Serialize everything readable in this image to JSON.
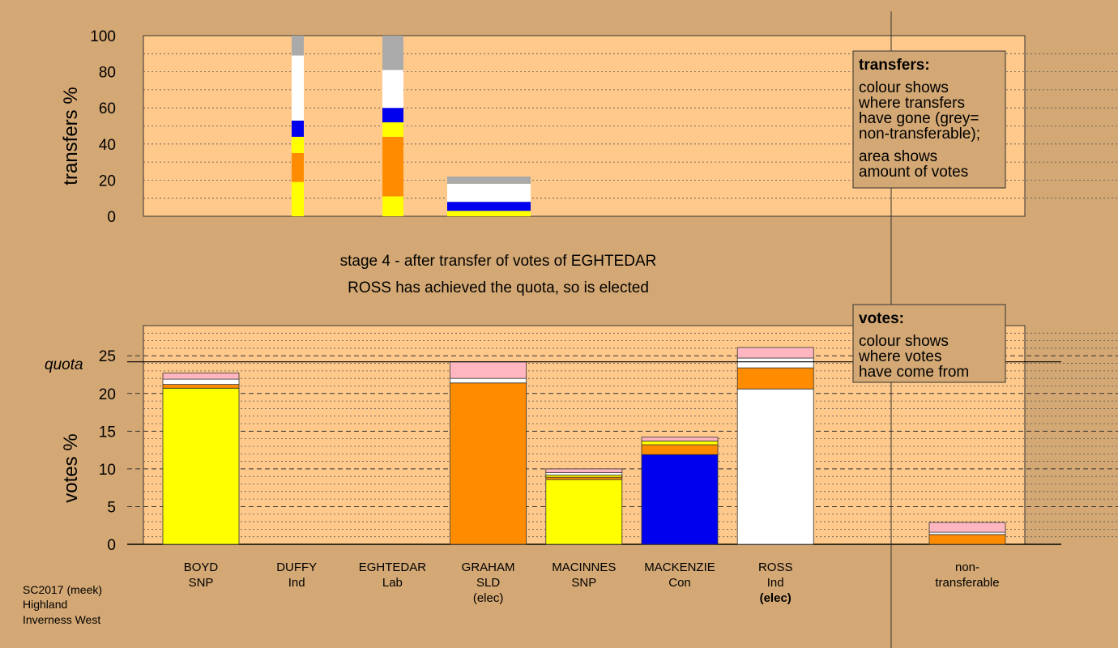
{
  "colors": {
    "background": "#d4a874",
    "plot": "#fec98a",
    "snp": "#ffff00",
    "sld": "#ff8c00",
    "lab": "#ff8c00",
    "con": "#0000ee",
    "ind": "#ffffff",
    "other": "#ffb6c1",
    "nontransferable": "#aaaaaa"
  },
  "header": {
    "stage_line": "stage 4 - after transfer of votes of EGHTEDAR",
    "elected_line": "ROSS has achieved the quota, so is elected"
  },
  "footer": {
    "line1": "SC2017 (meek)",
    "line2": "Highland",
    "line3": "Inverness West"
  },
  "transfers_legend": {
    "title": "transfers:",
    "line1": "colour shows",
    "line2": "where transfers",
    "line3": "have gone (grey=",
    "line4": "non-transferable);",
    "line5": "area shows",
    "line6": "amount of votes"
  },
  "votes_legend": {
    "title": "votes:",
    "line1": "colour shows",
    "line2": "where votes",
    "line3": "have come from"
  },
  "chart_data": [
    {
      "type": "bar",
      "name": "transfers",
      "ylabel": "transfers %",
      "ylim": [
        0,
        100
      ],
      "yticks": [
        0,
        20,
        40,
        60,
        80,
        100
      ],
      "note": "stacked segments: [bottom %, top %, colour key]",
      "bars": [
        {
          "slot": 1,
          "width": "narrow",
          "segments": [
            [
              0,
              19,
              "snp"
            ],
            [
              19,
              35,
              "sld"
            ],
            [
              35,
              44,
              "snp"
            ],
            [
              44,
              53,
              "con"
            ],
            [
              53,
              89,
              "ind"
            ],
            [
              89,
              100,
              "nontransferable"
            ]
          ]
        },
        {
          "slot": 2,
          "width": "narrow",
          "segments": [
            [
              0,
              11,
              "snp"
            ],
            [
              11,
              44,
              "sld"
            ],
            [
              44,
              52,
              "snp"
            ],
            [
              52,
              60,
              "con"
            ],
            [
              60,
              81,
              "ind"
            ],
            [
              81,
              100,
              "nontransferable"
            ]
          ]
        },
        {
          "slot": 3,
          "width": "wide",
          "segments": [
            [
              0,
              3,
              "snp"
            ],
            [
              3,
              8,
              "con"
            ],
            [
              8,
              18,
              "ind"
            ],
            [
              18,
              22,
              "nontransferable"
            ]
          ]
        }
      ]
    },
    {
      "type": "bar",
      "name": "votes",
      "ylabel": "votes %",
      "ylim": [
        0,
        29
      ],
      "yticks": [
        0,
        5,
        10,
        15,
        20,
        25
      ],
      "quota": 24.2,
      "quota_label": "quota",
      "candidates": [
        {
          "name": "BOYD",
          "party": "SNP",
          "elected": "",
          "segments": [
            [
              0,
              20.7,
              "snp"
            ],
            [
              20.7,
              21.2,
              "sld"
            ],
            [
              21.2,
              21.9,
              "ind"
            ],
            [
              21.9,
              22.7,
              "other"
            ]
          ]
        },
        {
          "name": "DUFFY",
          "party": "Ind",
          "elected": "",
          "segments": []
        },
        {
          "name": "EGHTEDAR",
          "party": "Lab",
          "elected": "",
          "segments": []
        },
        {
          "name": "GRAHAM",
          "party": "SLD",
          "elected": "(elec)",
          "segments": [
            [
              0,
              21.4,
              "sld"
            ],
            [
              21.4,
              22.0,
              "ind"
            ],
            [
              22.0,
              24.2,
              "other"
            ]
          ]
        },
        {
          "name": "MACINNES",
          "party": "SNP",
          "elected": "",
          "segments": [
            [
              0,
              8.6,
              "snp"
            ],
            [
              8.6,
              8.9,
              "sld"
            ],
            [
              8.9,
              9.2,
              "snp"
            ],
            [
              9.2,
              9.5,
              "ind"
            ],
            [
              9.5,
              10.0,
              "other"
            ]
          ]
        },
        {
          "name": "MACKENZIE",
          "party": "Con",
          "elected": "",
          "segments": [
            [
              0,
              11.9,
              "con"
            ],
            [
              11.9,
              13.2,
              "sld"
            ],
            [
              13.2,
              13.7,
              "snp"
            ],
            [
              13.7,
              14.2,
              "other"
            ]
          ]
        },
        {
          "name": "ROSS",
          "party": "Ind",
          "elected": "(elec)",
          "segments": [
            [
              0,
              20.6,
              "ind"
            ],
            [
              20.6,
              23.4,
              "sld"
            ],
            [
              23.4,
              24.7,
              "ind"
            ],
            [
              24.7,
              26.1,
              "other"
            ]
          ]
        }
      ],
      "nontransferable": {
        "label1": "non-",
        "label2": "transferable",
        "segments": [
          [
            0,
            1.3,
            "sld"
          ],
          [
            1.3,
            1.6,
            "ind"
          ],
          [
            1.6,
            2.9,
            "other"
          ]
        ]
      }
    }
  ]
}
